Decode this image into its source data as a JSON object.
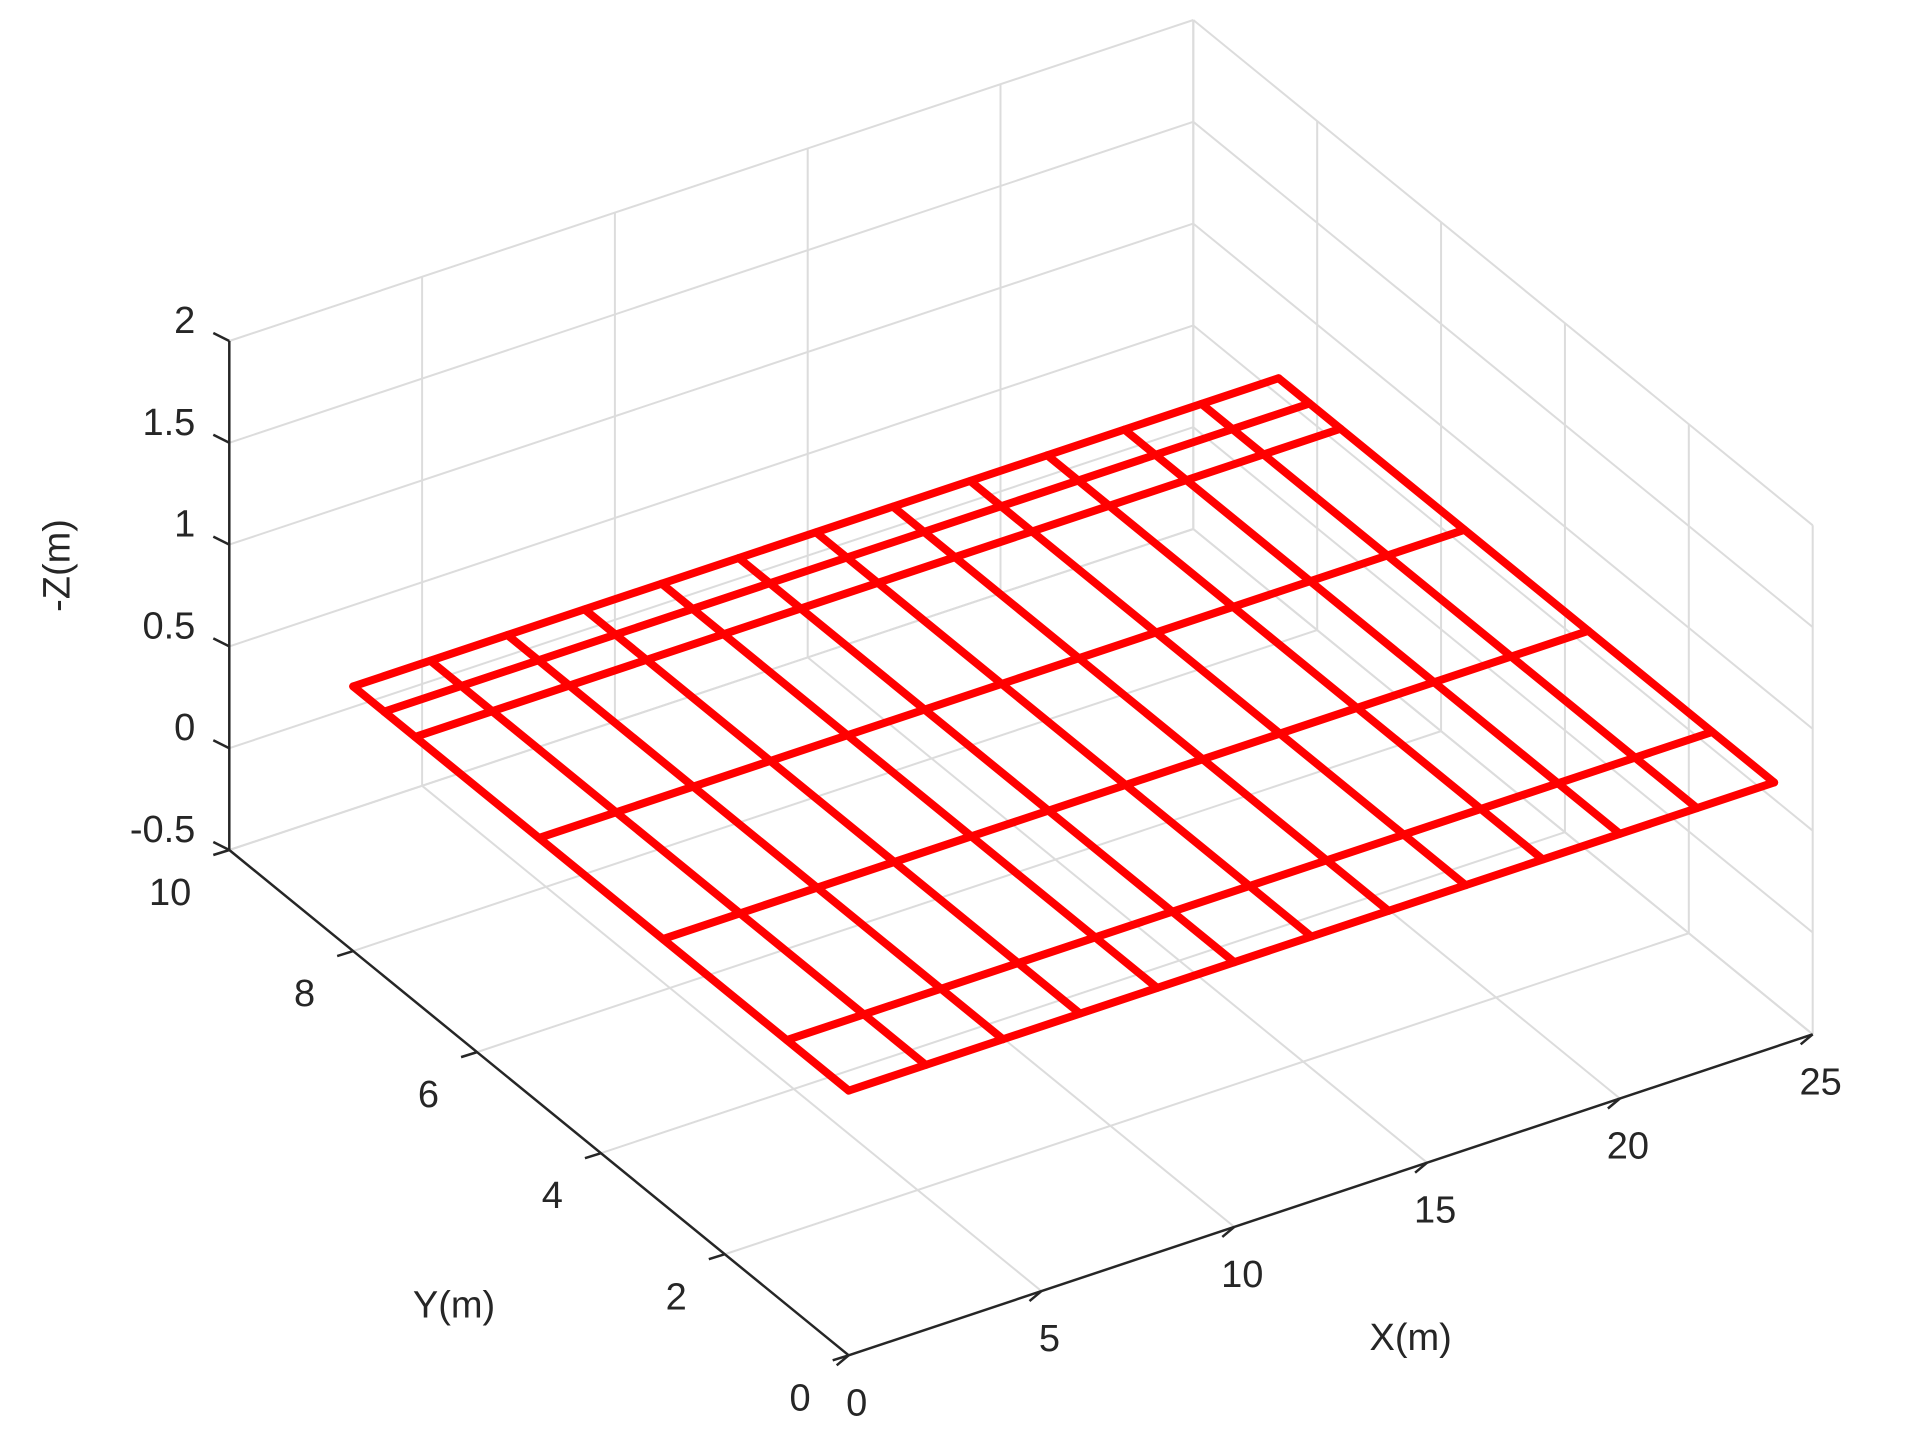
{
  "chart_data": {
    "type": "mesh3d",
    "xlabel": "X(m)",
    "ylabel": "Y(m)",
    "zlabel": "-Z(m)",
    "xlim": [
      0,
      25
    ],
    "ylim": [
      0,
      10
    ],
    "zlim": [
      -0.5,
      2
    ],
    "xticks": [
      0,
      5,
      10,
      15,
      20,
      25
    ],
    "yticks": [
      0,
      2,
      4,
      6,
      8,
      10
    ],
    "zticks": [
      -0.5,
      0,
      0.5,
      1,
      1.5,
      2
    ],
    "grid": true,
    "color": "#ff0000",
    "mesh_x": [
      0,
      2,
      4,
      6,
      8,
      10,
      12,
      14,
      16,
      18,
      20,
      22,
      24
    ],
    "mesh_y": [
      0,
      1,
      3,
      5,
      7,
      7.5,
      8
    ],
    "mesh_z": 0.8
  }
}
